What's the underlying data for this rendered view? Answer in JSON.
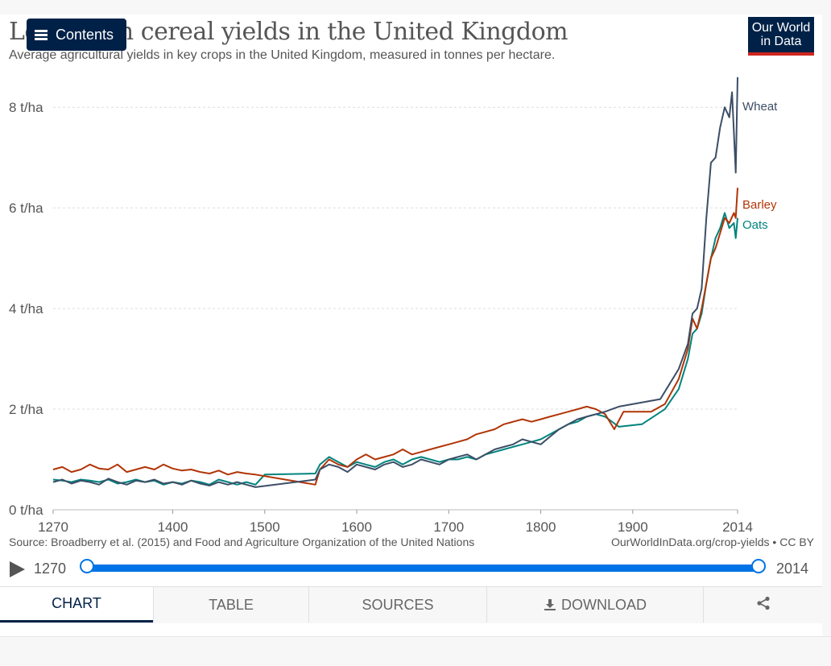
{
  "header": {
    "title": "Long-term cereal yields in the United Kingdom",
    "subtitle": "Average agricultural yields in key crops in the United Kingdom, measured in tonnes per hectare.",
    "contents_label": "Contents",
    "logo_line1": "Our World",
    "logo_line2": "in Data"
  },
  "footer": {
    "source": "Source: Broadberry et al. (2015) and Food and Agriculture Organization of the United Nations",
    "license": "OurWorldInData.org/crop-yields • CC BY"
  },
  "timeline": {
    "start": "1270",
    "end": "2014"
  },
  "tabs": [
    "CHART",
    "TABLE",
    "SOURCES",
    "DOWNLOAD"
  ],
  "colors": {
    "wheat": "#3c4e66",
    "barley": "#b13507",
    "oats": "#00847e",
    "accent": "#0073e6",
    "navy": "#002147",
    "logo_bar": "#ce261e"
  },
  "icons": {
    "menu": "menu-icon",
    "play": "play-icon",
    "download": "download-icon",
    "share": "share-icon"
  },
  "chart_data": {
    "type": "line",
    "title": "Long-term cereal yields in the United Kingdom",
    "subtitle": "Average agricultural yields in key crops in the United Kingdom, measured in tonnes per hectare.",
    "xlabel": "",
    "ylabel": "",
    "xlim": [
      1270,
      2014
    ],
    "ylim": [
      0,
      8.5
    ],
    "x_ticks": [
      1270,
      1400,
      1500,
      1600,
      1700,
      1800,
      1900,
      2014
    ],
    "y_ticks": [
      0,
      2,
      4,
      6,
      8
    ],
    "y_tick_labels": [
      "0 t/ha",
      "2 t/ha",
      "4 t/ha",
      "6 t/ha",
      "8 t/ha"
    ],
    "grid": "horizontal dashed",
    "legend": "end-of-line labels",
    "series": [
      {
        "name": "Wheat",
        "color": "#3c4e66",
        "points": [
          [
            1270,
            0.55
          ],
          [
            1280,
            0.6
          ],
          [
            1290,
            0.52
          ],
          [
            1300,
            0.58
          ],
          [
            1310,
            0.55
          ],
          [
            1320,
            0.5
          ],
          [
            1330,
            0.62
          ],
          [
            1340,
            0.55
          ],
          [
            1350,
            0.5
          ],
          [
            1360,
            0.58
          ],
          [
            1370,
            0.55
          ],
          [
            1380,
            0.6
          ],
          [
            1390,
            0.52
          ],
          [
            1400,
            0.55
          ],
          [
            1410,
            0.5
          ],
          [
            1420,
            0.58
          ],
          [
            1430,
            0.52
          ],
          [
            1440,
            0.48
          ],
          [
            1450,
            0.55
          ],
          [
            1460,
            0.5
          ],
          [
            1470,
            0.55
          ],
          [
            1480,
            0.5
          ],
          [
            1490,
            0.45
          ],
          [
            1555,
            0.6
          ],
          [
            1560,
            0.8
          ],
          [
            1570,
            0.9
          ],
          [
            1580,
            0.85
          ],
          [
            1590,
            0.75
          ],
          [
            1600,
            0.9
          ],
          [
            1610,
            0.85
          ],
          [
            1620,
            0.8
          ],
          [
            1630,
            0.9
          ],
          [
            1640,
            0.95
          ],
          [
            1650,
            0.85
          ],
          [
            1660,
            0.9
          ],
          [
            1670,
            1.0
          ],
          [
            1680,
            0.95
          ],
          [
            1690,
            0.9
          ],
          [
            1700,
            1.0
          ],
          [
            1710,
            1.05
          ],
          [
            1720,
            1.1
          ],
          [
            1730,
            1.0
          ],
          [
            1740,
            1.1
          ],
          [
            1750,
            1.2
          ],
          [
            1760,
            1.25
          ],
          [
            1770,
            1.3
          ],
          [
            1780,
            1.4
          ],
          [
            1790,
            1.35
          ],
          [
            1800,
            1.3
          ],
          [
            1810,
            1.45
          ],
          [
            1820,
            1.6
          ],
          [
            1830,
            1.7
          ],
          [
            1840,
            1.8
          ],
          [
            1850,
            1.85
          ],
          [
            1860,
            1.9
          ],
          [
            1870,
            1.95
          ],
          [
            1885,
            2.05
          ],
          [
            1930,
            2.2
          ],
          [
            1940,
            2.5
          ],
          [
            1950,
            2.8
          ],
          [
            1960,
            3.3
          ],
          [
            1965,
            3.9
          ],
          [
            1970,
            4.0
          ],
          [
            1975,
            4.4
          ],
          [
            1980,
            5.8
          ],
          [
            1985,
            6.9
          ],
          [
            1990,
            7.0
          ],
          [
            1995,
            7.6
          ],
          [
            2000,
            8.0
          ],
          [
            2005,
            7.8
          ],
          [
            2008,
            8.3
          ],
          [
            2010,
            7.5
          ],
          [
            2012,
            6.7
          ],
          [
            2014,
            8.6
          ]
        ]
      },
      {
        "name": "Barley",
        "color": "#b13507",
        "points": [
          [
            1270,
            0.8
          ],
          [
            1280,
            0.85
          ],
          [
            1290,
            0.75
          ],
          [
            1300,
            0.8
          ],
          [
            1310,
            0.9
          ],
          [
            1320,
            0.82
          ],
          [
            1330,
            0.8
          ],
          [
            1340,
            0.9
          ],
          [
            1350,
            0.75
          ],
          [
            1360,
            0.8
          ],
          [
            1370,
            0.85
          ],
          [
            1380,
            0.8
          ],
          [
            1390,
            0.9
          ],
          [
            1400,
            0.82
          ],
          [
            1410,
            0.78
          ],
          [
            1420,
            0.8
          ],
          [
            1430,
            0.75
          ],
          [
            1440,
            0.72
          ],
          [
            1450,
            0.78
          ],
          [
            1460,
            0.7
          ],
          [
            1470,
            0.75
          ],
          [
            1480,
            0.72
          ],
          [
            1490,
            0.7
          ],
          [
            1555,
            0.5
          ],
          [
            1560,
            0.8
          ],
          [
            1570,
            1.0
          ],
          [
            1580,
            0.9
          ],
          [
            1590,
            0.85
          ],
          [
            1600,
            1.0
          ],
          [
            1610,
            1.1
          ],
          [
            1620,
            1.0
          ],
          [
            1630,
            1.05
          ],
          [
            1640,
            1.1
          ],
          [
            1650,
            1.2
          ],
          [
            1660,
            1.1
          ],
          [
            1670,
            1.15
          ],
          [
            1680,
            1.2
          ],
          [
            1690,
            1.25
          ],
          [
            1700,
            1.3
          ],
          [
            1710,
            1.35
          ],
          [
            1720,
            1.4
          ],
          [
            1730,
            1.5
          ],
          [
            1740,
            1.55
          ],
          [
            1750,
            1.6
          ],
          [
            1760,
            1.7
          ],
          [
            1770,
            1.75
          ],
          [
            1780,
            1.8
          ],
          [
            1790,
            1.75
          ],
          [
            1800,
            1.8
          ],
          [
            1810,
            1.85
          ],
          [
            1820,
            1.9
          ],
          [
            1830,
            1.95
          ],
          [
            1840,
            2.0
          ],
          [
            1850,
            2.05
          ],
          [
            1860,
            2.0
          ],
          [
            1870,
            1.9
          ],
          [
            1880,
            1.6
          ],
          [
            1890,
            1.95
          ],
          [
            1920,
            1.95
          ],
          [
            1935,
            2.1
          ],
          [
            1950,
            2.6
          ],
          [
            1960,
            3.2
          ],
          [
            1965,
            3.8
          ],
          [
            1970,
            3.6
          ],
          [
            1975,
            4.0
          ],
          [
            1980,
            4.5
          ],
          [
            1985,
            5.0
          ],
          [
            1990,
            5.2
          ],
          [
            1995,
            5.5
          ],
          [
            2000,
            5.8
          ],
          [
            2005,
            5.7
          ],
          [
            2010,
            5.9
          ],
          [
            2012,
            5.8
          ],
          [
            2014,
            6.4
          ]
        ]
      },
      {
        "name": "Oats",
        "color": "#00847e",
        "points": [
          [
            1270,
            0.6
          ],
          [
            1280,
            0.58
          ],
          [
            1290,
            0.55
          ],
          [
            1300,
            0.6
          ],
          [
            1310,
            0.58
          ],
          [
            1320,
            0.55
          ],
          [
            1330,
            0.6
          ],
          [
            1340,
            0.52
          ],
          [
            1350,
            0.55
          ],
          [
            1360,
            0.6
          ],
          [
            1370,
            0.55
          ],
          [
            1380,
            0.58
          ],
          [
            1390,
            0.5
          ],
          [
            1400,
            0.55
          ],
          [
            1410,
            0.52
          ],
          [
            1420,
            0.58
          ],
          [
            1430,
            0.55
          ],
          [
            1440,
            0.5
          ],
          [
            1450,
            0.6
          ],
          [
            1460,
            0.55
          ],
          [
            1470,
            0.5
          ],
          [
            1480,
            0.55
          ],
          [
            1490,
            0.5
          ],
          [
            1500,
            0.7
          ],
          [
            1555,
            0.72
          ],
          [
            1560,
            0.9
          ],
          [
            1570,
            1.05
          ],
          [
            1580,
            0.95
          ],
          [
            1590,
            0.85
          ],
          [
            1600,
            0.95
          ],
          [
            1610,
            0.9
          ],
          [
            1620,
            0.85
          ],
          [
            1630,
            0.95
          ],
          [
            1640,
            1.0
          ],
          [
            1650,
            0.9
          ],
          [
            1660,
            1.0
          ],
          [
            1670,
            1.05
          ],
          [
            1680,
            1.0
          ],
          [
            1690,
            0.95
          ],
          [
            1700,
            1.0
          ],
          [
            1710,
            1.0
          ],
          [
            1720,
            1.05
          ],
          [
            1730,
            1.0
          ],
          [
            1740,
            1.1
          ],
          [
            1750,
            1.15
          ],
          [
            1760,
            1.2
          ],
          [
            1770,
            1.25
          ],
          [
            1780,
            1.3
          ],
          [
            1790,
            1.35
          ],
          [
            1800,
            1.4
          ],
          [
            1810,
            1.5
          ],
          [
            1820,
            1.6
          ],
          [
            1830,
            1.7
          ],
          [
            1840,
            1.75
          ],
          [
            1850,
            1.85
          ],
          [
            1860,
            1.9
          ],
          [
            1870,
            1.85
          ],
          [
            1885,
            1.65
          ],
          [
            1910,
            1.7
          ],
          [
            1935,
            2.0
          ],
          [
            1950,
            2.4
          ],
          [
            1960,
            3.0
          ],
          [
            1965,
            3.5
          ],
          [
            1970,
            3.6
          ],
          [
            1975,
            3.9
          ],
          [
            1980,
            4.5
          ],
          [
            1985,
            5.0
          ],
          [
            1990,
            5.4
          ],
          [
            1995,
            5.6
          ],
          [
            2000,
            5.9
          ],
          [
            2005,
            5.6
          ],
          [
            2010,
            5.7
          ],
          [
            2012,
            5.4
          ],
          [
            2014,
            5.8
          ]
        ]
      }
    ]
  }
}
